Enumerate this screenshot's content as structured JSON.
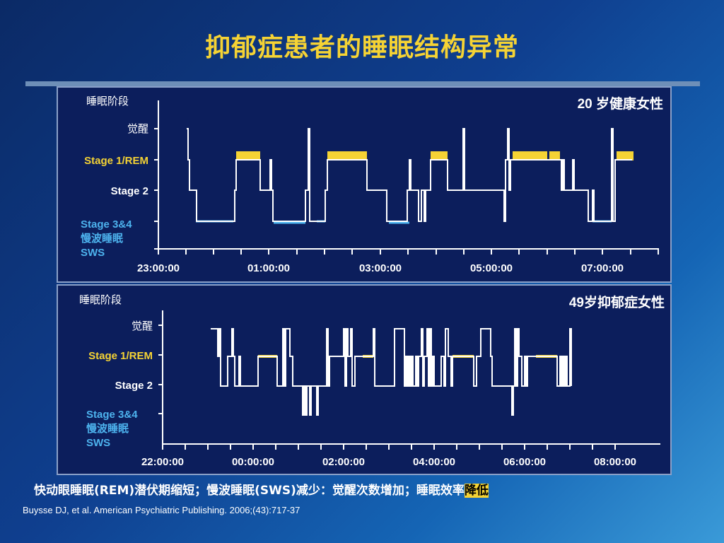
{
  "slide": {
    "title": "抑郁症患者的睡眠结构异常",
    "footer_text_main": "快动眼睡眠(REM)潜伏期缩短；慢波睡眠(SWS)减少：觉醒次数增加；睡眠效率",
    "footer_text_highlight": "降低",
    "reference": "Buysse DJ, et al. American Psychiatric Publishing. 2006;(43):717-37"
  },
  "colors": {
    "background": "#0f3f8f",
    "title": "#f5d334",
    "panel": "#0c1e5c",
    "trace": "#ffffff",
    "rem": "#f5d334",
    "sws": "#4db3ee"
  },
  "chart_data": [
    {
      "type": "line",
      "title": "20 岁健康女性",
      "ylabel": "睡眠阶段",
      "y_levels": [
        "觉醒",
        "Stage 1/REM",
        "Stage 2",
        "Stage 3&4",
        "慢波睡眠",
        "SWS"
      ],
      "x_tick_labels": [
        "23:00:00",
        "01:00:00",
        "03:00:00",
        "05:00:00",
        "07:00:00"
      ],
      "xlim": [
        "22:30",
        "07:50"
      ],
      "series": [
        {
          "x": [
            22.98,
            22.98,
            23.05,
            23.05,
            23.2,
            23.2,
            24.5,
            24.5,
            25.0,
            25.0,
            25.3,
            25.3,
            26.1,
            26.1,
            26.8,
            26.8,
            27.7,
            27.7,
            28.3,
            28.3,
            28.7,
            28.7,
            29.2,
            29.2,
            29.5,
            29.5,
            30.1,
            30.1,
            30.4,
            30.4,
            31.3,
            31.3,
            31.8
          ],
          "y": [
            0,
            1,
            1,
            2,
            2,
            3,
            3,
            2,
            2,
            1,
            1,
            2,
            2,
            3,
            3,
            2,
            2,
            3,
            3,
            1,
            1,
            2,
            2,
            0,
            0,
            1,
            1,
            2,
            2,
            3,
            3,
            1,
            1
          ]
        }
      ],
      "rem_segments": [
        [
          "24:30",
          "25:00"
        ],
        [
          "25:90",
          "26:40"
        ],
        [
          "27:70",
          "28:30"
        ],
        [
          "29:40",
          "30:30"
        ],
        [
          "31:40",
          "31:70"
        ]
      ]
    },
    {
      "type": "line",
      "title": "49岁抑郁症女性",
      "ylabel": "睡眠阶段",
      "y_levels": [
        "觉醒",
        "Stage 1/REM",
        "Stage 2",
        "Stage 3&4",
        "慢波睡眠",
        "SWS"
      ],
      "x_tick_labels": [
        "22:00:00",
        "00:00:00",
        "02:00:00",
        "04:00:00",
        "06:00:00",
        "08:00:00"
      ],
      "xlim": [
        "21:45",
        "08:10"
      ],
      "series": [
        {
          "x": [
            21.7,
            22.2,
            22.2,
            22.5,
            22.5,
            23.0,
            23.0,
            23.6,
            23.6,
            24.6,
            24.6,
            25.0,
            25.0,
            25.6,
            25.6,
            26.0,
            26.0,
            26.7,
            26.7,
            27.3,
            27.3,
            27.8,
            27.8,
            28.6,
            28.6,
            29.2,
            29.2,
            29.6,
            29.6,
            30.1,
            30.1,
            30.5,
            30.5,
            30.9
          ],
          "y": [
            0,
            0,
            2,
            2,
            1,
            1,
            2,
            2,
            0,
            0,
            3,
            3,
            2,
            2,
            0,
            0,
            2,
            2,
            0,
            0,
            2,
            2,
            1,
            1,
            2,
            2,
            0,
            0,
            2,
            2,
            1,
            1,
            2,
            2
          ]
        }
      ],
      "rem_segments": [
        [
          "23:10",
          "23:55"
        ],
        [
          "27:55",
          "27:80"
        ],
        [
          "28:30",
          "28:90"
        ],
        [
          "30:05",
          "30:55"
        ]
      ]
    }
  ]
}
